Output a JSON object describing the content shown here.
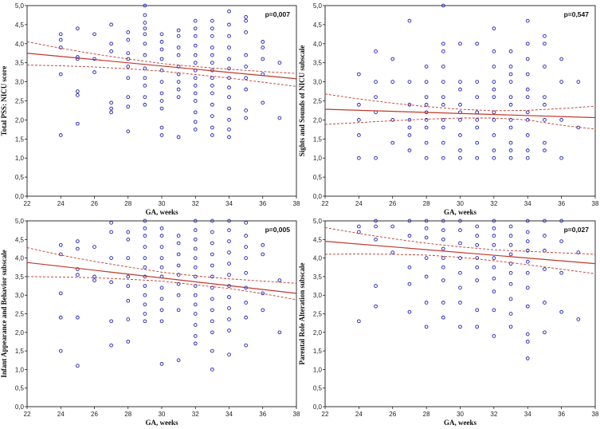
{
  "chart_data": [
    {
      "type": "scatter",
      "xlabel": "GA, weeks",
      "ylabel": "Total PSS: NICU score",
      "annotation": "p=0,007",
      "xlim": [
        22,
        38
      ],
      "ylim": [
        0,
        5
      ],
      "xticks": [
        "22",
        "24",
        "26",
        "28",
        "30",
        "32",
        "34",
        "36",
        "38"
      ],
      "yticks": [
        "0,0",
        "0,5",
        "1,0",
        "1,5",
        "2,0",
        "2,5",
        "3,0",
        "3,5",
        "4,0",
        "4,5",
        "5,0"
      ],
      "fit": {
        "x": [
          22,
          38
        ],
        "y": [
          3.75,
          3.08
        ]
      },
      "ci_upper": {
        "x": [
          22,
          24,
          26,
          28,
          30,
          32,
          34,
          36,
          38
        ],
        "y": [
          4.05,
          3.88,
          3.73,
          3.6,
          3.48,
          3.4,
          3.33,
          3.27,
          3.22
        ]
      },
      "ci_lower": {
        "x": [
          22,
          24,
          26,
          28,
          30,
          32,
          34,
          36,
          38
        ],
        "y": [
          3.44,
          3.42,
          3.39,
          3.34,
          3.28,
          3.19,
          3.1,
          2.99,
          2.88
        ]
      },
      "points": {
        "x": [
          24,
          24,
          24,
          24,
          24,
          25,
          25,
          25,
          25,
          25,
          25,
          26,
          26,
          26,
          27,
          27,
          27,
          27,
          27,
          27,
          28,
          28,
          28,
          28,
          28,
          28,
          28,
          28,
          28,
          29,
          29,
          29,
          29,
          29,
          29,
          29,
          29,
          29,
          29,
          29,
          29,
          30,
          30,
          30,
          30,
          30,
          30,
          30,
          30,
          30,
          30,
          30,
          31,
          31,
          31,
          31,
          31,
          31,
          31,
          31,
          31,
          31,
          32,
          32,
          32,
          32,
          32,
          32,
          32,
          32,
          32,
          32,
          32,
          32,
          32,
          32,
          33,
          33,
          33,
          33,
          33,
          33,
          33,
          33,
          33,
          33,
          33,
          33,
          33,
          33,
          34,
          34,
          34,
          34,
          34,
          34,
          34,
          34,
          34,
          34,
          34,
          34,
          34,
          35,
          35,
          35,
          35,
          35,
          35,
          35,
          35,
          35,
          36,
          36,
          36,
          36,
          36,
          37,
          37
        ],
        "y": [
          4.25,
          4.1,
          3.9,
          3.2,
          1.6,
          4.4,
          3.65,
          3.6,
          2.75,
          2.65,
          1.9,
          4.25,
          3.6,
          3.25,
          4.5,
          4.0,
          3.8,
          2.45,
          2.2,
          2.3,
          4.3,
          4.1,
          3.75,
          3.6,
          3.4,
          3.1,
          2.6,
          2.35,
          1.7,
          5.0,
          4.75,
          4.55,
          4.4,
          4.25,
          4.0,
          3.7,
          3.35,
          3.1,
          2.9,
          2.6,
          2.4,
          4.25,
          4.05,
          3.85,
          3.6,
          3.3,
          3.0,
          2.7,
          2.5,
          2.3,
          1.8,
          1.6,
          4.35,
          4.2,
          3.9,
          3.7,
          3.4,
          3.2,
          3.0,
          2.8,
          2.6,
          1.55,
          4.6,
          4.4,
          4.2,
          3.95,
          3.7,
          3.5,
          3.3,
          3.1,
          2.9,
          2.7,
          2.5,
          2.2,
          1.95,
          1.75,
          4.6,
          4.4,
          4.2,
          3.9,
          3.7,
          3.5,
          3.3,
          3.1,
          2.9,
          2.7,
          2.4,
          2.1,
          1.8,
          1.6,
          4.85,
          4.5,
          4.2,
          3.9,
          3.6,
          3.35,
          3.1,
          2.85,
          2.6,
          2.3,
          2.0,
          1.75,
          1.55,
          4.7,
          4.6,
          4.3,
          3.7,
          3.4,
          3.1,
          2.8,
          2.25,
          2.05,
          4.05,
          3.9,
          3.6,
          3.2,
          2.45,
          3.5,
          2.05
        ]
      }
    },
    {
      "type": "scatter",
      "xlabel": "GA, weeks",
      "ylabel": "Sights and Sounds of NICU subscale",
      "annotation": "p=0,547",
      "xlim": [
        22,
        38
      ],
      "ylim": [
        0,
        5
      ],
      "xticks": [
        "22",
        "24",
        "26",
        "28",
        "30",
        "32",
        "34",
        "36",
        "38"
      ],
      "yticks": [
        "0,0",
        "0,5",
        "1,0",
        "1,5",
        "2,0",
        "2,5",
        "3,0",
        "3,5",
        "4,0",
        "4,5",
        "5,0"
      ],
      "fit": {
        "x": [
          22,
          38
        ],
        "y": [
          2.28,
          2.06
        ]
      },
      "ci_upper": {
        "x": [
          22,
          24,
          26,
          28,
          30,
          32,
          34,
          36,
          38
        ],
        "y": [
          2.68,
          2.55,
          2.44,
          2.35,
          2.28,
          2.24,
          2.25,
          2.3,
          2.36
        ]
      },
      "ci_lower": {
        "x": [
          22,
          24,
          26,
          28,
          30,
          32,
          34,
          36,
          38
        ],
        "y": [
          1.88,
          1.93,
          1.98,
          2.02,
          2.05,
          2.05,
          2.0,
          1.86,
          1.76
        ]
      },
      "points": {
        "x": [
          24,
          24,
          24,
          24,
          24,
          25,
          25,
          25,
          25,
          25,
          26,
          26,
          26,
          26,
          27,
          27,
          27,
          27,
          27,
          27,
          27,
          28,
          28,
          28,
          28,
          28,
          28,
          28,
          28,
          28,
          29,
          29,
          29,
          29,
          29,
          29,
          29,
          29,
          29,
          29,
          29,
          30,
          30,
          30,
          30,
          30,
          30,
          30,
          30,
          30,
          31,
          31,
          31,
          31,
          31,
          31,
          31,
          31,
          32,
          32,
          32,
          32,
          32,
          32,
          32,
          32,
          32,
          32,
          32,
          33,
          33,
          33,
          33,
          33,
          33,
          33,
          33,
          33,
          33,
          33,
          34,
          34,
          34,
          34,
          34,
          34,
          34,
          34,
          34,
          34,
          34,
          35,
          35,
          35,
          35,
          35,
          35,
          35,
          35,
          36,
          36,
          36,
          36,
          37,
          37
        ],
        "y": [
          3.2,
          2.4,
          2.0,
          1.6,
          1.0,
          3.8,
          3.0,
          2.6,
          2.2,
          1.0,
          3.6,
          3.0,
          2.0,
          1.4,
          4.6,
          3.0,
          2.4,
          2.0,
          1.8,
          1.6,
          1.2,
          3.4,
          3.0,
          2.6,
          2.4,
          2.2,
          2.0,
          1.8,
          1.4,
          1.0,
          5.0,
          4.0,
          3.8,
          3.4,
          3.0,
          2.6,
          2.4,
          2.0,
          1.8,
          1.4,
          1.0,
          4.0,
          3.0,
          2.8,
          2.4,
          2.2,
          2.0,
          1.6,
          1.2,
          1.0,
          4.0,
          3.0,
          2.6,
          2.2,
          2.0,
          1.8,
          1.4,
          1.0,
          4.4,
          3.8,
          3.4,
          3.0,
          2.8,
          2.6,
          2.2,
          2.0,
          1.6,
          1.2,
          1.0,
          3.8,
          3.4,
          3.2,
          3.0,
          2.6,
          2.4,
          2.0,
          1.8,
          1.4,
          1.2,
          1.0,
          4.6,
          4.0,
          3.6,
          3.2,
          2.8,
          2.6,
          2.2,
          2.0,
          1.6,
          1.2,
          1.0,
          4.2,
          4.0,
          3.4,
          2.6,
          2.4,
          2.0,
          1.4,
          1.2,
          3.6,
          3.0,
          2.0,
          1.0,
          3.0,
          1.8
        ]
      }
    },
    {
      "type": "scatter",
      "xlabel": "GA, weeks",
      "ylabel": "Infant Appearance and Behavior subscale",
      "annotation": "p=0,005",
      "xlim": [
        22,
        38
      ],
      "ylim": [
        0,
        5
      ],
      "xticks": [
        "22",
        "24",
        "26",
        "28",
        "30",
        "32",
        "34",
        "36",
        "38"
      ],
      "yticks": [
        "0,0",
        "0,5",
        "1,0",
        "1,5",
        "2,0",
        "2,5",
        "3,0",
        "3,5",
        "4,0",
        "4,5",
        "5,0"
      ],
      "fit": {
        "x": [
          22,
          38
        ],
        "y": [
          3.88,
          3.05
        ]
      },
      "ci_upper": {
        "x": [
          22,
          24,
          26,
          28,
          30,
          32,
          34,
          36,
          38
        ],
        "y": [
          4.28,
          4.08,
          3.91,
          3.76,
          3.62,
          3.52,
          3.44,
          3.38,
          3.32
        ]
      },
      "ci_lower": {
        "x": [
          22,
          24,
          26,
          28,
          30,
          32,
          34,
          36,
          38
        ],
        "y": [
          3.5,
          3.49,
          3.47,
          3.43,
          3.38,
          3.28,
          3.18,
          3.04,
          2.88
        ]
      },
      "points": {
        "x": [
          24,
          24,
          24,
          24,
          24,
          25,
          25,
          25,
          25,
          25,
          25,
          26,
          26,
          26,
          27,
          27,
          27,
          27,
          27,
          27,
          28,
          28,
          28,
          28,
          28,
          28,
          28,
          28,
          29,
          29,
          29,
          29,
          29,
          29,
          29,
          29,
          29,
          29,
          29,
          29,
          30,
          30,
          30,
          30,
          30,
          30,
          30,
          30,
          30,
          30,
          30,
          31,
          31,
          31,
          31,
          31,
          31,
          31,
          31,
          31,
          32,
          32,
          32,
          32,
          32,
          32,
          32,
          32,
          32,
          32,
          32,
          32,
          32,
          32,
          33,
          33,
          33,
          33,
          33,
          33,
          33,
          33,
          33,
          33,
          33,
          33,
          33,
          34,
          34,
          34,
          34,
          34,
          34,
          34,
          34,
          34,
          34,
          34,
          34,
          35,
          35,
          35,
          35,
          35,
          35,
          35,
          35,
          35,
          36,
          36,
          36,
          36,
          37,
          37
        ],
        "y": [
          4.35,
          4.1,
          3.05,
          2.4,
          1.5,
          4.45,
          4.25,
          3.7,
          3.55,
          2.4,
          1.1,
          4.3,
          3.5,
          3.4,
          4.95,
          4.7,
          4.0,
          3.35,
          2.3,
          1.65,
          4.7,
          4.5,
          4.0,
          3.5,
          3.25,
          2.85,
          2.35,
          1.75,
          5.0,
          4.8,
          4.6,
          4.3,
          4.0,
          3.75,
          3.5,
          3.25,
          3.0,
          2.75,
          2.5,
          2.3,
          4.8,
          4.6,
          4.3,
          4.0,
          3.75,
          3.5,
          3.2,
          2.9,
          2.6,
          2.3,
          1.15,
          4.6,
          4.4,
          4.1,
          3.8,
          3.55,
          3.3,
          3.0,
          2.6,
          1.25,
          5.0,
          4.75,
          4.5,
          4.25,
          4.0,
          3.75,
          3.5,
          3.25,
          3.0,
          2.75,
          2.5,
          2.2,
          1.9,
          1.7,
          5.0,
          4.7,
          4.4,
          4.1,
          3.8,
          3.5,
          3.2,
          2.9,
          2.6,
          2.3,
          2.0,
          1.5,
          1.0,
          5.0,
          4.75,
          4.45,
          4.15,
          3.85,
          3.55,
          3.25,
          2.95,
          2.65,
          2.35,
          2.05,
          1.4,
          4.95,
          4.6,
          4.3,
          4.0,
          3.6,
          3.2,
          2.8,
          2.4,
          1.65,
          4.35,
          4.1,
          3.05,
          2.6,
          3.4,
          2.0
        ]
      }
    },
    {
      "type": "scatter",
      "xlabel": "GA, weeks",
      "ylabel": "Parental Role Alteration subscale",
      "annotation": "p=0,027",
      "xlim": [
        22,
        38
      ],
      "ylim": [
        0,
        5
      ],
      "xticks": [
        "22",
        "24",
        "26",
        "28",
        "30",
        "32",
        "34",
        "36",
        "38"
      ],
      "yticks": [
        "0,0",
        "0,5",
        "1,0",
        "1,5",
        "2,0",
        "2,5",
        "3,0",
        "3,5",
        "4,0",
        "4,5",
        "5,0"
      ],
      "fit": {
        "x": [
          22,
          38
        ],
        "y": [
          4.45,
          3.85
        ]
      },
      "ci_upper": {
        "x": [
          22,
          24,
          26,
          28,
          30,
          32,
          34,
          36,
          38
        ],
        "y": [
          4.82,
          4.66,
          4.52,
          4.4,
          4.3,
          4.22,
          4.18,
          4.14,
          4.1
        ]
      },
      "ci_lower": {
        "x": [
          22,
          24,
          26,
          28,
          30,
          32,
          34,
          36,
          38
        ],
        "y": [
          4.1,
          4.11,
          4.1,
          4.08,
          4.02,
          3.93,
          3.82,
          3.7,
          3.58
        ]
      },
      "points": {
        "x": [
          24,
          24,
          24,
          25,
          25,
          25,
          25,
          25,
          26,
          26,
          27,
          27,
          27,
          27,
          27,
          28,
          28,
          28,
          28,
          28,
          28,
          28,
          29,
          29,
          29,
          29,
          29,
          29,
          29,
          29,
          29,
          30,
          30,
          30,
          30,
          30,
          30,
          30,
          30,
          31,
          31,
          31,
          31,
          31,
          31,
          31,
          31,
          32,
          32,
          32,
          32,
          32,
          32,
          32,
          32,
          32,
          32,
          33,
          33,
          33,
          33,
          33,
          33,
          33,
          33,
          33,
          33,
          34,
          34,
          34,
          34,
          34,
          34,
          34,
          34,
          34,
          34,
          34,
          35,
          35,
          35,
          35,
          35,
          35,
          36,
          36,
          36,
          36,
          37,
          37
        ],
        "y": [
          4.85,
          4.7,
          2.3,
          5.0,
          4.85,
          4.5,
          3.25,
          2.7,
          4.85,
          4.15,
          5.0,
          4.6,
          3.75,
          3.3,
          2.55,
          5.0,
          4.8,
          4.55,
          4.0,
          3.5,
          2.8,
          2.15,
          5.0,
          4.75,
          4.5,
          4.25,
          4.0,
          3.75,
          3.4,
          2.8,
          2.4,
          5.0,
          4.75,
          4.4,
          4.0,
          3.6,
          3.2,
          2.8,
          2.15,
          4.85,
          4.6,
          4.35,
          4.0,
          3.75,
          3.4,
          2.6,
          2.15,
          5.0,
          4.8,
          4.6,
          4.35,
          4.0,
          3.75,
          3.45,
          3.1,
          2.6,
          1.9,
          4.85,
          4.6,
          4.35,
          4.1,
          3.85,
          3.6,
          3.3,
          2.9,
          2.5,
          2.15,
          5.0,
          4.7,
          4.45,
          4.2,
          3.9,
          3.6,
          3.2,
          2.7,
          1.95,
          1.75,
          1.3,
          5.0,
          4.6,
          4.2,
          3.7,
          2.8,
          2.0,
          5.0,
          4.45,
          3.6,
          2.55,
          4.15,
          2.35
        ]
      }
    }
  ]
}
